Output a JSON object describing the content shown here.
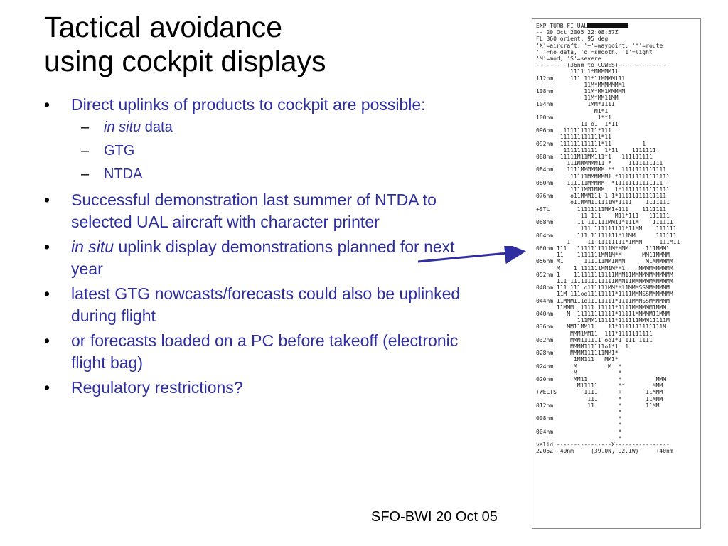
{
  "slide": {
    "title_line1": "Tactical avoidance",
    "title_line2": "using cockpit displays",
    "footer": "SFO-BWI 20 Oct 05"
  },
  "bullets": [
    {
      "text": "Direct uplinks of products to cockpit are possible:",
      "subs": [
        {
          "italic": "in situ",
          "text": " data"
        },
        {
          "italic": "",
          "text": "GTG"
        },
        {
          "italic": "",
          "text": "NTDA"
        }
      ]
    },
    {
      "lead": "",
      "text": "Successful demonstration last summer of NTDA to selected UAL aircraft with character printer"
    },
    {
      "lead": "in situ",
      "text": " uplink display demonstrations planned for next year"
    },
    {
      "lead": "",
      "text": "latest GTG nowcasts/forecasts could also be uplinked during flight"
    },
    {
      "lead": "",
      "text": "or forecasts loaded on a PC before takeoff (electronic flight bag)"
    },
    {
      "lead": "",
      "text": "Regulatory restrictions?"
    }
  ],
  "bullet_symbol": "•",
  "dash_symbol": "–",
  "printout": {
    "header_prefix": "EXP TURB FI UAL",
    "lines": [
      "-- 20 Oct 2005 22:08:57Z",
      "FL 360 orient. 95 deg",
      "'X'=aircraft, '+'=waypoint, '*'=route",
      "' '=no_data, 'o'=smooth, '1'=light",
      "'M'=mod, 'S'=severe",
      "---------(36nm to COWES)---------------",
      "          1111 1*MMMMM11",
      "112nm     111 11*11MMMM111",
      "              11M*MMMMMMM1",
      "108nm         11M*MM1MMMMM",
      "              11M*MM11MM",
      "104nm          1MM*1111",
      "                 M1*1",
      "100nm             1**1",
      "             11 o1  1*11",
      "096nm   1111111111*111",
      "       111111111111*11",
      "092nm  111111111111*11         1",
      "        1111111111  1*11    1111111",
      "088nm  11111M11MM111*1   111111111",
      "         111MMMMMM11 *     1111111111",
      "084nm    1111MMMMMMM **  1111111111111",
      "          11111MMMMMM1 *111111111111111",
      "080nm    111111MMMMM  *11111111111111",
      "          1111MM1MMM   1*11111111111111",
      "076nm     o11MMM111 1 1*11111111111111",
      "          o11MMM111111M*1111    1111111",
      "+STL        11111111MM1+111    1111111",
      "             11 111    M11*111   111111",
      "068nm       11 111111MM11*111M    111111",
      "             111 111111111*11MM    111111",
      "064nm       111 11111111*11MM      111111",
      "         1     11 11111111*1MMM     111M11",
      "060nm 111   1111111111M*MMM     111MMM1",
      "      11    1111111MM1M*M      MM11MMMM",
      "056nm M1      111111MM1M*M      M1MMMMMM",
      "      M    1 111111MM1M*M1    MMMMMMMMMM",
      "052nm 1    111111111111M*M11MMMMMMMMMMMM",
      "      111 1111111111111M*M11MMMMMMMMMMMM",
      "048nm 111 111 o111111MM*M11MMMSSMMMMMMM",
      "      11M 111oo11111111*1111MMMSSMMMMMMM",
      "044nm 11MMM111o11111111*1111MMMSSMMMMMM",
      "      11MMM  1111 11111*1111MMMMMM1MMM",
      "040nm    M  11111111111*11111MMMMM11MMM",
      "            111MM111111*111111MMM11111M",
      "036nm    MM11MM11    11*1111111111111M",
      "          MMM1MM11  111*1111111111",
      "032nm     MMM111111 oo1*1 111 1111",
      "          MMMM111111o1*1  1",
      "028nm     MMMM111111MM1*",
      "           1MM111   MM1*",
      "024nm      M         M  *",
      "           M            *",
      "020nm      MM11         *          MMM",
      "            M11111      **        MMM",
      "+WELTS        1111      +       11MMM",
      "               111      *       11MMM",
      "012nm          11       *       11MM",
      "                        *",
      "008nm                   *",
      "                        *",
      "004nm                   *",
      "                        *",
      "valid ----------------X----------------",
      "2205Z -40nm     (39.0N, 92.1W)     +40nm"
    ]
  }
}
